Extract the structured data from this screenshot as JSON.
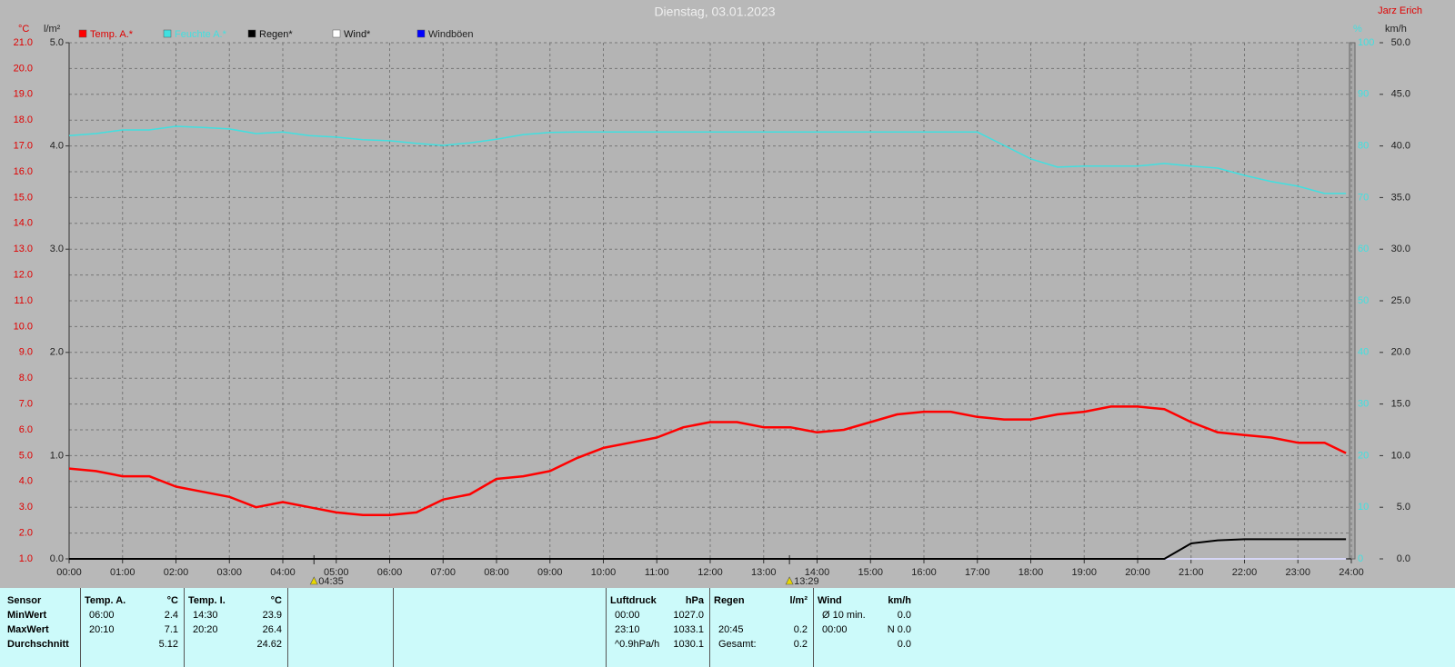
{
  "chart_data": {
    "type": "line",
    "title": "Dienstag, 03.01.2023",
    "author": "Jarz Erich",
    "y_label": "°C",
    "y2_label": "l/m²",
    "y3_label": "%",
    "y4_label": "km/h",
    "x": [
      0,
      0.5,
      1,
      1.5,
      2,
      2.5,
      3,
      3.5,
      4,
      4.5,
      5,
      5.5,
      6,
      6.5,
      7,
      7.5,
      8,
      8.5,
      9,
      9.5,
      10,
      10.5,
      11,
      11.5,
      12,
      12.5,
      13,
      13.5,
      14,
      14.5,
      15,
      15.5,
      16,
      16.5,
      17,
      17.5,
      18,
      18.5,
      19,
      19.5,
      20,
      20.5,
      21,
      21.5,
      22,
      22.5,
      23,
      23.5,
      23.9
    ],
    "xlim": [
      0,
      24
    ],
    "xticks": [
      {
        "value": 0,
        "label": "00:00"
      },
      {
        "value": 1,
        "label": "01:00"
      },
      {
        "value": 2,
        "label": "02:00"
      },
      {
        "value": 3,
        "label": "03:00"
      },
      {
        "value": 4,
        "label": "04:00"
      },
      {
        "value": 5,
        "label": "05:00"
      },
      {
        "value": 6,
        "label": "06:00"
      },
      {
        "value": 7,
        "label": "07:00"
      },
      {
        "value": 8,
        "label": "08:00"
      },
      {
        "value": 9,
        "label": "09:00"
      },
      {
        "value": 10,
        "label": "10:00"
      },
      {
        "value": 11,
        "label": "11:00"
      },
      {
        "value": 12,
        "label": "12:00"
      },
      {
        "value": 13,
        "label": "13:00"
      },
      {
        "value": 14,
        "label": "14:00"
      },
      {
        "value": 15,
        "label": "15:00"
      },
      {
        "value": 16,
        "label": "16:00"
      },
      {
        "value": 17,
        "label": "17:00"
      },
      {
        "value": 18,
        "label": "18:00"
      },
      {
        "value": 19,
        "label": "19:00"
      },
      {
        "value": 20,
        "label": "20:00"
      },
      {
        "value": 21,
        "label": "21:00"
      },
      {
        "value": 22,
        "label": "22:00"
      },
      {
        "value": 23,
        "label": "23:00"
      },
      {
        "value": 24,
        "label": "24:00"
      }
    ],
    "ylim": [
      1,
      21
    ],
    "yticks": [
      {
        "value": 1,
        "label": "1.0"
      },
      {
        "value": 2,
        "label": "2.0"
      },
      {
        "value": 3,
        "label": "3.0"
      },
      {
        "value": 4,
        "label": "4.0"
      },
      {
        "value": 5,
        "label": "5.0"
      },
      {
        "value": 6,
        "label": "6.0"
      },
      {
        "value": 7,
        "label": "7.0"
      },
      {
        "value": 8,
        "label": "8.0"
      },
      {
        "value": 9,
        "label": "9.0"
      },
      {
        "value": 10,
        "label": "10.0"
      },
      {
        "value": 11,
        "label": "11.0"
      },
      {
        "value": 12,
        "label": "12.0"
      },
      {
        "value": 13,
        "label": "13.0"
      },
      {
        "value": 14,
        "label": "14.0"
      },
      {
        "value": 15,
        "label": "15.0"
      },
      {
        "value": 16,
        "label": "16.0"
      },
      {
        "value": 17,
        "label": "17.0"
      },
      {
        "value": 18,
        "label": "18.0"
      },
      {
        "value": 19,
        "label": "19.0"
      },
      {
        "value": 20,
        "label": "20.0"
      },
      {
        "value": 21,
        "label": "21.0"
      }
    ],
    "y2lim": [
      0,
      5
    ],
    "y2ticks": [
      {
        "value": 0,
        "label": "0.0"
      },
      {
        "value": 1,
        "label": "1.0"
      },
      {
        "value": 2,
        "label": "2.0"
      },
      {
        "value": 3,
        "label": "3.0"
      },
      {
        "value": 4,
        "label": "4.0"
      },
      {
        "value": 5,
        "label": "5.0"
      }
    ],
    "y3lim": [
      0,
      100
    ],
    "y3ticks": [
      0,
      10,
      20,
      30,
      40,
      50,
      60,
      70,
      80,
      90,
      100
    ],
    "y4lim": [
      0,
      50
    ],
    "y4ticks": [
      {
        "value": 0,
        "label": "0.0"
      },
      {
        "value": 5,
        "label": "5.0"
      },
      {
        "value": 10,
        "label": "10.0"
      },
      {
        "value": 15,
        "label": "15.0"
      },
      {
        "value": 20,
        "label": "20.0"
      },
      {
        "value": 25,
        "label": "25.0"
      },
      {
        "value": 30,
        "label": "30.0"
      },
      {
        "value": 35,
        "label": "35.0"
      },
      {
        "value": 40,
        "label": "40.0"
      },
      {
        "value": 45,
        "label": "45.0"
      },
      {
        "value": 50,
        "label": "50.0"
      }
    ],
    "grid": true,
    "series": [
      {
        "name": "Temp. A.*",
        "color": "#ff0000",
        "axis": "y",
        "values": [
          4.5,
          4.4,
          4.2,
          4.2,
          3.8,
          3.6,
          3.4,
          3.0,
          3.2,
          3.0,
          2.8,
          2.7,
          2.7,
          2.8,
          3.3,
          3.5,
          4.1,
          4.2,
          4.4,
          4.9,
          5.3,
          5.5,
          5.7,
          6.1,
          6.3,
          6.3,
          6.1,
          6.1,
          5.9,
          6.0,
          6.3,
          6.6,
          6.7,
          6.7,
          6.5,
          6.4,
          6.4,
          6.6,
          6.7,
          6.9,
          6.9,
          6.8,
          6.3,
          5.9,
          5.8,
          5.7,
          5.5,
          5.5,
          5.1
        ]
      },
      {
        "name": "Feuchte A.*",
        "color": "#40e0e0",
        "axis": "y3",
        "values": [
          82,
          82.4,
          83.1,
          83.1,
          83.8,
          83.6,
          83.3,
          82.4,
          82.7,
          82,
          81.7,
          81.2,
          81,
          80.5,
          80.1,
          80.6,
          81.3,
          82.2,
          82.6,
          82.7,
          82.7,
          82.7,
          82.7,
          82.7,
          82.7,
          82.7,
          82.7,
          82.7,
          82.7,
          82.7,
          82.7,
          82.7,
          82.7,
          82.7,
          82.7,
          80.1,
          77.5,
          75.9,
          76.1,
          76.1,
          76.1,
          76.6,
          76.1,
          75.7,
          74.3,
          73.1,
          72.2,
          70.8,
          70.8
        ]
      },
      {
        "name": "Regen*",
        "color": "#000000",
        "axis": "y2",
        "values": [
          0,
          0,
          0,
          0,
          0,
          0,
          0,
          0,
          0,
          0,
          0,
          0,
          0,
          0,
          0,
          0,
          0,
          0,
          0,
          0,
          0,
          0,
          0,
          0,
          0,
          0,
          0,
          0,
          0,
          0,
          0,
          0,
          0,
          0,
          0,
          0,
          0,
          0,
          0,
          0,
          0,
          0,
          0.15,
          0.18,
          0.19,
          0.19,
          0.19,
          0.19,
          0.19
        ]
      },
      {
        "name": "Wind*",
        "color": "#ffffff",
        "axis": "y4",
        "values": [
          0,
          0,
          0,
          0,
          0,
          0,
          0,
          0,
          0,
          0,
          0,
          0,
          0,
          0,
          0,
          0,
          0,
          0,
          0,
          0,
          0,
          0,
          0,
          0,
          0,
          0,
          0,
          0,
          0,
          0,
          0,
          0,
          0,
          0,
          0,
          0,
          0,
          0,
          0,
          0,
          0,
          0,
          0,
          0,
          0,
          0,
          0,
          0,
          0
        ]
      },
      {
        "name": "Windböen",
        "color": "#0000ff",
        "axis": "y4",
        "values": [
          0,
          0,
          0,
          0,
          0,
          0,
          0,
          0,
          0,
          0,
          0,
          0,
          0,
          0,
          0,
          0,
          0,
          0,
          0,
          0,
          0,
          0,
          0,
          0,
          0,
          0,
          0,
          0,
          0,
          0,
          0,
          0,
          0,
          0,
          0,
          0,
          0,
          0,
          0,
          0,
          0,
          0,
          0,
          0,
          0,
          0,
          0,
          0,
          0
        ]
      }
    ],
    "annotations": [
      {
        "x": 4.583,
        "label": "04:35"
      },
      {
        "x": 13.483,
        "label": "13:29"
      }
    ]
  },
  "stats": {
    "row_labels": [
      "Sensor",
      "MinWert",
      "MaxWert",
      "Durchschnitt"
    ],
    "groups": [
      {
        "header": [
          "Temp. A.",
          "°C"
        ],
        "rows": [
          [
            "06:00",
            "2.4"
          ],
          [
            "20:10",
            "7.1"
          ],
          [
            null,
            "5.12"
          ]
        ]
      },
      {
        "header": [
          "Temp. I.",
          "°C"
        ],
        "rows": [
          [
            "14:30",
            "23.9"
          ],
          [
            "20:20",
            "26.4"
          ],
          [
            null,
            "24.62"
          ]
        ]
      },
      {
        "header": [
          "Luftdruck",
          "hPa"
        ],
        "rows": [
          [
            "00:00",
            "1027.0"
          ],
          [
            "23:10",
            "1033.1"
          ],
          [
            "^0.9hPa/h",
            "1030.1"
          ]
        ]
      },
      {
        "header": [
          "Regen",
          "l/m²"
        ],
        "rows": [
          [
            null,
            null
          ],
          [
            "20:45",
            "0.2"
          ],
          [
            "Gesamt:",
            "0.2"
          ]
        ]
      },
      {
        "header": [
          "Wind",
          "km/h"
        ],
        "rows": [
          [
            "Ø 10 min.",
            "0.0"
          ],
          [
            "00:00",
            "N 0.0"
          ],
          [
            null,
            "0.0"
          ]
        ]
      }
    ]
  }
}
